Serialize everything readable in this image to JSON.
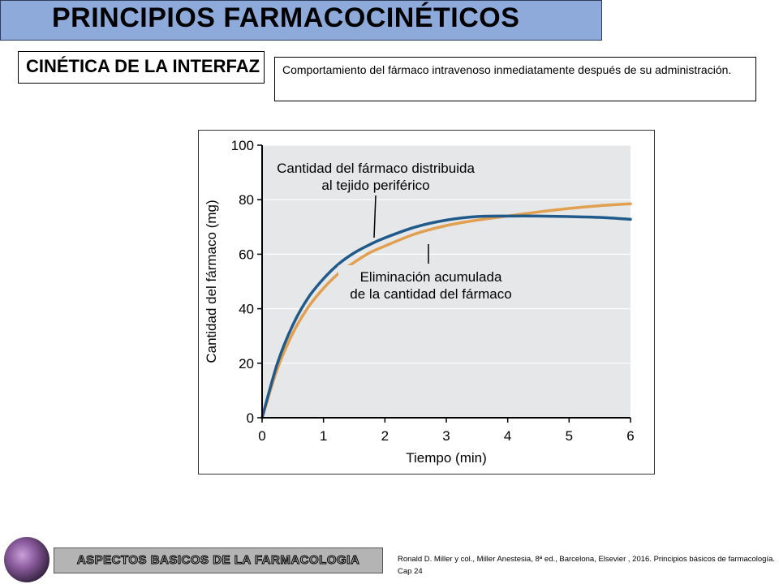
{
  "slide": {
    "title": "PRINCIPIOS FARMACOCINÉTICOS",
    "subtitle": "CINÉTICA DE LA INTERFAZ",
    "description": "Comportamiento del fármaco intravenoso inmediatamente después de su administración.",
    "footer_banner": "ASPECTOS BASICOS DE LA FARMACOLOGIA",
    "reference": "Ronald D. Miller y col., Miller Anestesia, 8ª ed., Barcelona, Elsevier , 2016. Principios básicos de farmacología. Cap 24"
  },
  "colors": {
    "title_bg": "#8eaadb",
    "plot_bg": "#e6e7e8",
    "series_distributed": "#1f5a8a",
    "series_eliminated": "#e0a050"
  },
  "chart_data": {
    "type": "line",
    "title": "",
    "xlabel": "Tiempo (min)",
    "ylabel": "Cantidad del fármaco (mg)",
    "xlim": [
      0,
      6
    ],
    "ylim": [
      0,
      100
    ],
    "x_ticks": [
      0,
      1,
      2,
      3,
      4,
      5,
      6
    ],
    "y_ticks": [
      0,
      20,
      40,
      60,
      80,
      100
    ],
    "grid": "horizontal",
    "x": [
      0,
      0.25,
      0.5,
      0.75,
      1,
      1.25,
      1.5,
      1.75,
      2,
      2.5,
      3,
      3.5,
      4,
      4.5,
      5,
      5.5,
      6
    ],
    "series": [
      {
        "name": "Cantidad del fármaco distribuida al tejido periférico",
        "color": "#1f5a8a",
        "values": [
          0,
          20,
          34,
          44,
          51,
          56.5,
          60.5,
          63.5,
          66,
          70,
          72.5,
          73.8,
          74,
          74,
          73.8,
          73.5,
          72.8
        ]
      },
      {
        "name": "Eliminación acumulada de la cantidad del fármaco",
        "color": "#e0a050",
        "values": [
          0,
          18,
          31,
          40.5,
          47.5,
          53,
          57,
          60.5,
          63,
          67.5,
          70.5,
          72.5,
          74,
          75.5,
          76.8,
          77.8,
          78.5
        ]
      }
    ],
    "annotations": [
      {
        "lines": [
          "Cantidad del fármaco distribuida",
          "al tejido periférico"
        ]
      },
      {
        "lines": [
          "Eliminación acumulada",
          "de la cantidad del fármaco"
        ]
      }
    ]
  }
}
